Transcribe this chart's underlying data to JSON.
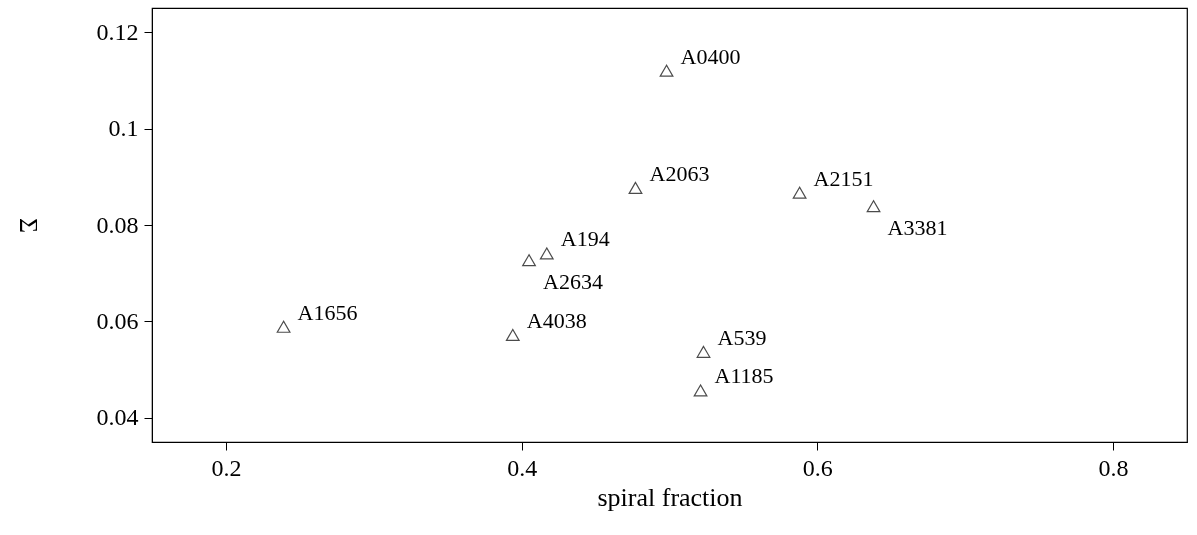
{
  "chart_data": {
    "type": "scatter",
    "xlabel": "spiral fraction",
    "ylabel": "Σ",
    "xlim": [
      0.15,
      0.85
    ],
    "xticks": [
      0.2,
      0.4,
      0.6,
      0.8
    ],
    "ylim": [
      0.035,
      0.125
    ],
    "yticks": [
      0.04,
      0.06,
      0.08,
      0.1,
      0.12
    ],
    "grid": false,
    "marker": "triangle",
    "x": [
      0.239,
      0.394,
      0.405,
      0.417,
      0.498,
      0.477,
      0.588,
      0.638,
      0.523,
      0.521
    ],
    "series": [
      {
        "color": "#000000",
        "values": [
          0.0589,
          0.0572,
          0.0727,
          0.0741,
          0.112,
          0.0877,
          0.0867,
          0.0839,
          0.0537,
          0.0457
        ]
      }
    ],
    "annotations": [
      {
        "text": "A1656",
        "x": 0.239,
        "y": 0.0589
      },
      {
        "text": "A4038",
        "x": 0.394,
        "y": 0.0572
      },
      {
        "text": "A2634",
        "x": 0.405,
        "y": 0.0727
      },
      {
        "text": "A194",
        "x": 0.417,
        "y": 0.0741
      },
      {
        "text": "A0400",
        "x": 0.498,
        "y": 0.112
      },
      {
        "text": "A2063",
        "x": 0.477,
        "y": 0.0877
      },
      {
        "text": "A2151",
        "x": 0.588,
        "y": 0.0867
      },
      {
        "text": "A3381",
        "x": 0.638,
        "y": 0.0839
      },
      {
        "text": "A539",
        "x": 0.523,
        "y": 0.0537
      },
      {
        "text": "A1185",
        "x": 0.521,
        "y": 0.0457
      }
    ]
  }
}
